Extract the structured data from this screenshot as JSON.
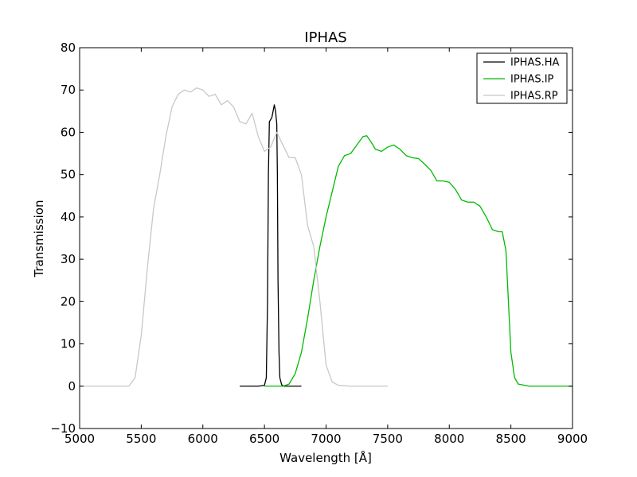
{
  "chart_data": {
    "type": "line",
    "title": "IPHAS",
    "xlabel": "Wavelength [Å]",
    "ylabel": "Transmission",
    "xlim": [
      5000,
      9000
    ],
    "ylim": [
      -10,
      80
    ],
    "xticks": [
      5000,
      5500,
      6000,
      6500,
      7000,
      7500,
      8000,
      8500,
      9000
    ],
    "yticks": [
      -10,
      0,
      10,
      20,
      30,
      40,
      50,
      60,
      70,
      80
    ],
    "grid": false,
    "legend_position": "top-right",
    "series": [
      {
        "name": "IPHAS.HA",
        "color": "#000000",
        "points": [
          [
            6300,
            0
          ],
          [
            6450,
            0
          ],
          [
            6500,
            0.2
          ],
          [
            6515,
            2
          ],
          [
            6525,
            20
          ],
          [
            6532,
            50
          ],
          [
            6540,
            62.5
          ],
          [
            6550,
            63
          ],
          [
            6560,
            63.5
          ],
          [
            6570,
            65
          ],
          [
            6580,
            66.5
          ],
          [
            6590,
            65
          ],
          [
            6600,
            62
          ],
          [
            6605,
            50
          ],
          [
            6610,
            25
          ],
          [
            6618,
            8
          ],
          [
            6625,
            2
          ],
          [
            6640,
            0.3
          ],
          [
            6660,
            0
          ],
          [
            6800,
            0
          ]
        ]
      },
      {
        "name": "IPHAS.IP",
        "color": "#00bb00",
        "points": [
          [
            6500,
            0
          ],
          [
            6650,
            0
          ],
          [
            6700,
            0.5
          ],
          [
            6750,
            3
          ],
          [
            6800,
            8
          ],
          [
            6850,
            16
          ],
          [
            6900,
            25
          ],
          [
            6950,
            33
          ],
          [
            7000,
            40
          ],
          [
            7050,
            46
          ],
          [
            7100,
            52
          ],
          [
            7150,
            54.5
          ],
          [
            7200,
            55
          ],
          [
            7250,
            57
          ],
          [
            7300,
            59
          ],
          [
            7330,
            59.2
          ],
          [
            7370,
            57.5
          ],
          [
            7400,
            56
          ],
          [
            7450,
            55.5
          ],
          [
            7500,
            56.5
          ],
          [
            7550,
            57
          ],
          [
            7600,
            56
          ],
          [
            7650,
            54.5
          ],
          [
            7700,
            54
          ],
          [
            7750,
            53.8
          ],
          [
            7800,
            52.5
          ],
          [
            7850,
            51
          ],
          [
            7900,
            48.5
          ],
          [
            7950,
            48.5
          ],
          [
            8000,
            48.2
          ],
          [
            8050,
            46.5
          ],
          [
            8100,
            44
          ],
          [
            8150,
            43.5
          ],
          [
            8200,
            43.5
          ],
          [
            8250,
            42.5
          ],
          [
            8300,
            40
          ],
          [
            8350,
            37
          ],
          [
            8400,
            36.5
          ],
          [
            8430,
            36.5
          ],
          [
            8460,
            32
          ],
          [
            8480,
            20
          ],
          [
            8500,
            8
          ],
          [
            8530,
            2
          ],
          [
            8560,
            0.5
          ],
          [
            8650,
            0
          ],
          [
            9000,
            0
          ]
        ]
      },
      {
        "name": "IPHAS.RP",
        "color": "#c8c8c8",
        "points": [
          [
            5000,
            0
          ],
          [
            5400,
            0
          ],
          [
            5450,
            2
          ],
          [
            5500,
            12
          ],
          [
            5550,
            28
          ],
          [
            5600,
            42
          ],
          [
            5650,
            50
          ],
          [
            5700,
            59
          ],
          [
            5750,
            66
          ],
          [
            5800,
            69
          ],
          [
            5850,
            70
          ],
          [
            5900,
            69.5
          ],
          [
            5950,
            70.5
          ],
          [
            6000,
            70
          ],
          [
            6050,
            68.5
          ],
          [
            6100,
            69
          ],
          [
            6150,
            66.5
          ],
          [
            6200,
            67.5
          ],
          [
            6250,
            66
          ],
          [
            6300,
            62.5
          ],
          [
            6350,
            62
          ],
          [
            6400,
            64.5
          ],
          [
            6450,
            59
          ],
          [
            6500,
            55.5
          ],
          [
            6550,
            56.5
          ],
          [
            6600,
            60
          ],
          [
            6650,
            57
          ],
          [
            6700,
            54
          ],
          [
            6750,
            54
          ],
          [
            6800,
            50
          ],
          [
            6850,
            38
          ],
          [
            6900,
            33
          ],
          [
            6950,
            20
          ],
          [
            7000,
            5
          ],
          [
            7050,
            1
          ],
          [
            7100,
            0.2
          ],
          [
            7200,
            0
          ],
          [
            7500,
            0
          ]
        ]
      }
    ]
  }
}
